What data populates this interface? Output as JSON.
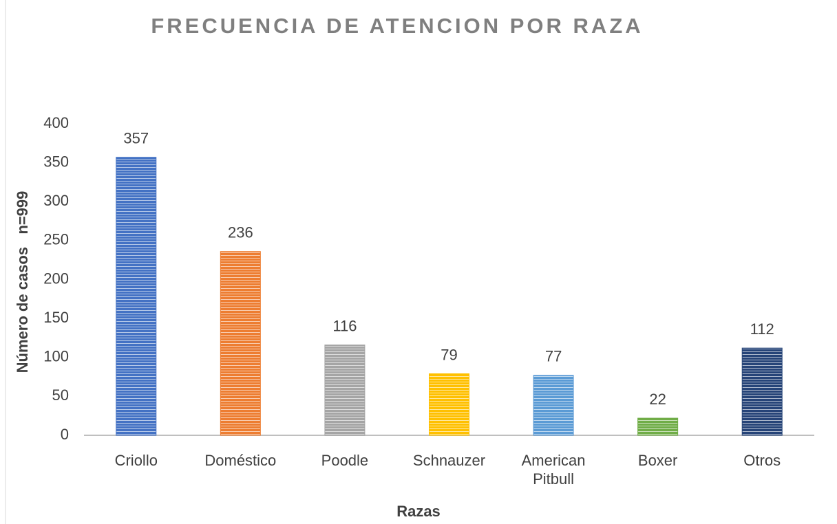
{
  "chart_data": {
    "type": "bar",
    "title": "FRECUENCIA  DE ATENCION POR RAZA",
    "x_label": "Razas",
    "y_label": "Número de casos   n=999",
    "categories": [
      "Criollo",
      "Doméstico",
      "Poodle",
      "Schnauzer",
      "American Pitbull",
      "Boxer",
      "Otros"
    ],
    "values": [
      357,
      236,
      116,
      79,
      77,
      22,
      112
    ],
    "colors": [
      "#4472c4",
      "#ed7d31",
      "#a5a5a5",
      "#ffc000",
      "#5b9bd5",
      "#70ad47",
      "#264478"
    ],
    "ylim": [
      0,
      400
    ],
    "yticks": [
      0,
      50,
      100,
      150,
      200,
      250,
      300,
      350,
      400
    ],
    "grid": false,
    "data_labels": true
  }
}
